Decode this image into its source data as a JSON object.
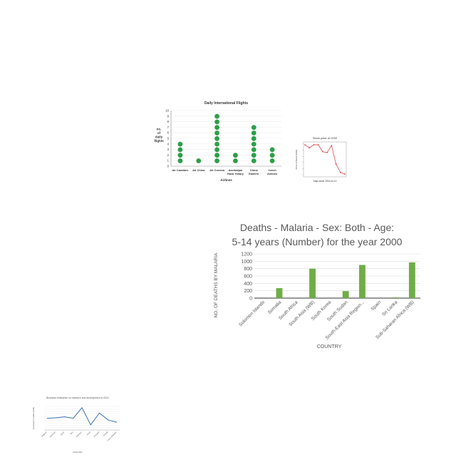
{
  "chart_data": [
    {
      "type": "scatter",
      "title": "Daily International Flights",
      "xlabel": "Airlines",
      "ylabel": "no. of daily flights",
      "ylim": [
        0,
        10
      ],
      "yticks": [
        0,
        1,
        2,
        3,
        4,
        5,
        6,
        7,
        8,
        9,
        10
      ],
      "categories": [
        "Air Caraibes",
        "Air China",
        "Air Corsica",
        "Azerbaijan Hava Yollary",
        "China Eastern",
        "Czech Airlines"
      ],
      "values": [
        4,
        1,
        9,
        2,
        7,
        3
      ],
      "colors": {
        "dot": "#2e9e48"
      }
    },
    {
      "type": "line",
      "title": "Stock price of OGE",
      "xlabel": "Days since 2014-04-12",
      "ylabel": "Price of Stock (USD)",
      "x": [
        0,
        1,
        2,
        3,
        4,
        5,
        6,
        7,
        8,
        9
      ],
      "values": [
        39.6,
        39.2,
        39.6,
        39.6,
        38.7,
        38.6,
        39.5,
        37.1,
        36.0,
        35.8
      ],
      "colors": {
        "line": "#d94c4c"
      }
    },
    {
      "type": "bar",
      "title": "Deaths - Malaria - Sex: Both - Age: 5-14 years (Number) for the year 2000",
      "xlabel": "COUNTRY",
      "ylabel": "NO. OF DEATHS BY MALARIA",
      "ylim": [
        0,
        1200
      ],
      "yticks": [
        0,
        200,
        400,
        600,
        800,
        1000,
        1200
      ],
      "categories": [
        "Solomon Islands",
        "Somalia",
        "South Africa",
        "South Asia (WB)",
        "South Korea",
        "South Sudan",
        "South-East Asia Region...",
        "Spain",
        "Sri Lanka",
        "Sub-Saharan Africa (WB)"
      ],
      "values": [
        0,
        270,
        0,
        800,
        0,
        190,
        900,
        0,
        20,
        970
      ],
      "colors": {
        "bar": "#70ad47"
      }
    },
    {
      "type": "line",
      "title": "Business enterprise on research and development in 2012",
      "xlabel": "COUNTRY",
      "ylabel": "Investment in million (US$)",
      "categories": [
        "Belgium",
        "Denmark",
        "Spain",
        "Italy",
        "Germany",
        "Israel",
        "Portugal",
        "Poland",
        "Czech Republic"
      ],
      "values": [
        5000,
        5200,
        5600,
        5000,
        9500,
        2200,
        7200,
        4300,
        3300
      ],
      "colors": {
        "line": "#3a70b4"
      }
    }
  ]
}
